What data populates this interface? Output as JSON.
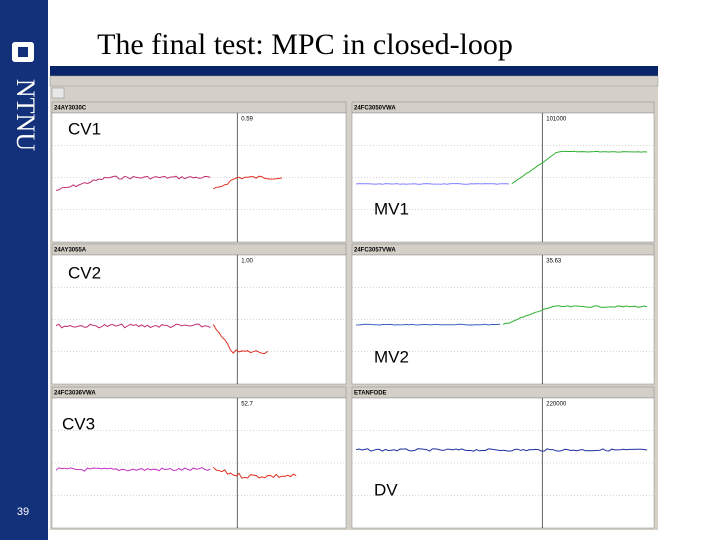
{
  "slide": {
    "title": "The final test: MPC in closed-loop",
    "logo": "NTNU",
    "page_number": "39"
  },
  "panels": [
    {
      "tag": "24AY3030C",
      "readout": "0.59",
      "label": "CV1"
    },
    {
      "tag": "24FC3050VWA",
      "readout": "101000",
      "label": "MV1"
    },
    {
      "tag": "24AY3055A",
      "readout": "1.00",
      "label": "CV2"
    },
    {
      "tag": "24FC3057VWA",
      "readout": "35.63",
      "label": "MV2"
    },
    {
      "tag": "24FC3036VWA",
      "readout": "52.7",
      "label": "CV3"
    },
    {
      "tag": "ETANFODE",
      "readout": "220000",
      "label": "DV"
    }
  ]
}
